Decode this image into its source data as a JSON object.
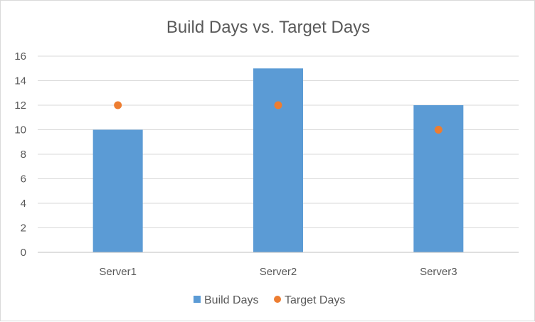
{
  "chart_data": {
    "type": "bar",
    "title": "Build Days vs. Target Days",
    "xlabel": "",
    "ylabel": "",
    "categories": [
      "Server1",
      "Server2",
      "Server3"
    ],
    "ylim": [
      0,
      16
    ],
    "yticks": [
      0,
      2,
      4,
      6,
      8,
      10,
      12,
      14,
      16
    ],
    "grid": true,
    "legend_position": "bottom",
    "series": [
      {
        "name": "Build Days",
        "type": "bar",
        "color": "#5b9bd5",
        "values": [
          10,
          15,
          12
        ]
      },
      {
        "name": "Target Days",
        "type": "scatter",
        "color": "#ed7d31",
        "values": [
          12,
          12,
          10
        ]
      }
    ]
  }
}
